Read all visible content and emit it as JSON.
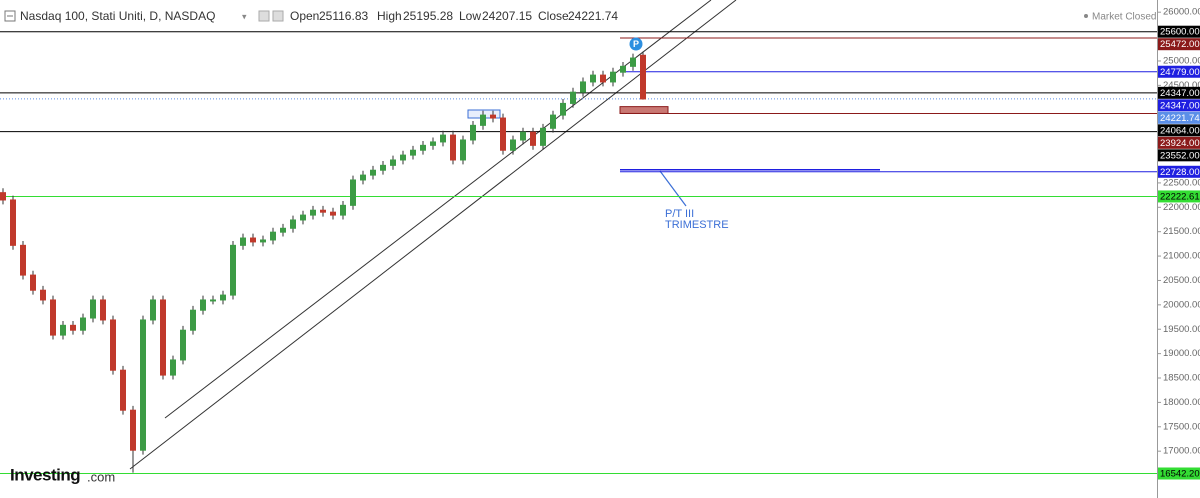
{
  "header": {
    "title": "Nasdaq 100, Stati Uniti, D, NASDAQ",
    "open_label": "Open",
    "open": 25116.83,
    "high_label": "High",
    "high": 25195.28,
    "low_label": "Low",
    "low": 24207.15,
    "close_label": "Close",
    "close": 24221.74,
    "status": "Market Closed",
    "logo": "Investing",
    "logo_suffix": ".com"
  },
  "chart_data": {
    "type": "candlestick",
    "up_color": "#3c9b45",
    "down_color": "#c0392b",
    "ylim": [
      16040,
      26250
    ],
    "yticks": [
      {
        "value": 26000,
        "label": "26000.00"
      },
      {
        "value": 25000,
        "label": "25000.00"
      },
      {
        "value": 24500,
        "label": "24500.00"
      },
      {
        "value": 22500,
        "label": "22500.00"
      },
      {
        "value": 22000,
        "label": "22000.00"
      },
      {
        "value": 21500,
        "label": "21500.00"
      },
      {
        "value": 21000,
        "label": "21000.00"
      },
      {
        "value": 20500,
        "label": "20500.00"
      },
      {
        "value": 20000,
        "label": "20000.00"
      },
      {
        "value": 19500,
        "label": "19500.00"
      },
      {
        "value": 19000,
        "label": "19000.00"
      },
      {
        "value": 18500,
        "label": "18500.00"
      },
      {
        "value": 18000,
        "label": "18000.00"
      },
      {
        "value": 17500,
        "label": "17500.00"
      },
      {
        "value": 17000,
        "label": "17000.00"
      }
    ],
    "open": [
      22300,
      22150,
      21220,
      20610,
      20300,
      20100,
      19380,
      19580,
      19480,
      19730,
      20100,
      19690,
      18660,
      17840,
      17020,
      19690,
      20100,
      18560,
      18870,
      19480,
      19890,
      20100,
      20100,
      20200,
      21220,
      21370,
      21290,
      21330,
      21490,
      21570,
      21740,
      21840,
      21940,
      21900,
      21840,
      22040,
      22560,
      22660,
      22760,
      22860,
      22970,
      23070,
      23170,
      23270,
      23340,
      23480,
      22970,
      23380,
      23680,
      23890,
      23830,
      23170,
      23380,
      23540,
      23270,
      23620,
      23890,
      24130,
      24360,
      24570,
      24710,
      24570,
      24770,
      24890,
      25116.83
    ],
    "high": [
      22390,
      22240,
      21310,
      20700,
      20390,
      20190,
      19670,
      19670,
      19820,
      20190,
      20190,
      19780,
      18750,
      17930,
      19780,
      20190,
      20190,
      18960,
      19570,
      19980,
      20190,
      20190,
      20290,
      21310,
      21460,
      21460,
      21420,
      21580,
      21660,
      21830,
      21930,
      22030,
      22030,
      21990,
      22130,
      22650,
      22750,
      22850,
      22950,
      23060,
      23160,
      23260,
      23360,
      23430,
      23570,
      23570,
      23470,
      23770,
      23980,
      23980,
      23920,
      23470,
      23630,
      23630,
      23710,
      23980,
      24220,
      24450,
      24660,
      24800,
      24800,
      24860,
      24980,
      25150,
      25195.28
    ],
    "low": [
      22060,
      21130,
      20520,
      20210,
      20010,
      19290,
      19290,
      19390,
      19390,
      19640,
      19600,
      18570,
      17750,
      16560,
      16930,
      19600,
      18470,
      18470,
      18780,
      19390,
      19800,
      20010,
      20010,
      20110,
      21130,
      21200,
      21200,
      21240,
      21400,
      21480,
      21650,
      21750,
      21810,
      21750,
      21750,
      21950,
      22470,
      22570,
      22670,
      22770,
      22880,
      22980,
      23080,
      23180,
      23250,
      22880,
      22880,
      23290,
      23590,
      23740,
      23080,
      23080,
      23290,
      23180,
      23180,
      23530,
      23800,
      24040,
      24270,
      24480,
      24480,
      24480,
      24680,
      24800,
      24207.15
    ],
    "close": [
      22150,
      21220,
      20610,
      20300,
      20100,
      19380,
      19580,
      19480,
      19730,
      20100,
      19690,
      18660,
      17840,
      17020,
      19690,
      20100,
      18560,
      18870,
      19480,
      19890,
      20100,
      20100,
      20200,
      21220,
      21370,
      21290,
      21330,
      21490,
      21570,
      21740,
      21840,
      21940,
      21900,
      21840,
      22040,
      22560,
      22660,
      22760,
      22860,
      22970,
      23070,
      23170,
      23270,
      23340,
      23480,
      22970,
      23380,
      23680,
      23890,
      23830,
      23170,
      23380,
      23540,
      23270,
      23620,
      23890,
      24130,
      24360,
      24570,
      24710,
      24570,
      24770,
      24890,
      25060,
      24221.74
    ],
    "levels": [
      {
        "value": 25600,
        "label": "25600.00",
        "color": "#000000",
        "text_color": "#ffffff",
        "line": "full"
      },
      {
        "value": 25472,
        "label": "25472.00",
        "color": "#8b1a1a",
        "text_color": "#ffffff",
        "line": "right"
      },
      {
        "value": 24779,
        "label": "24779.00",
        "color": "#1f1fe0",
        "text_color": "#ffffff",
        "line": "right"
      },
      {
        "value": 24347,
        "label": "24347.00",
        "color": "#000000",
        "text_color": "#ffffff",
        "line": "full"
      },
      {
        "value": 24347,
        "label": "24347.00",
        "color": "#1f1fe0",
        "text_color": "#ffffff",
        "line": "none"
      },
      {
        "value": 24221.74,
        "label": "24221.74",
        "color": "#5b8fe8",
        "text_color": "#ffffff",
        "line": "dotted"
      },
      {
        "value": 24064,
        "label": "24064.00",
        "color": "#000000",
        "text_color": "#ffffff",
        "line": "none"
      },
      {
        "value": 23924,
        "label": "23924.00",
        "color": "#8b1a1a",
        "text_color": "#ffffff",
        "line": "right"
      },
      {
        "value": 23552,
        "label": "23552.00",
        "color": "#000000",
        "text_color": "#ffffff",
        "line": "full"
      },
      {
        "value": 22728,
        "label": "22728.00",
        "color": "#1f1fe0",
        "text_color": "#ffffff",
        "line": "double"
      },
      {
        "value": 22222.61,
        "label": "22222.61",
        "color": "#33dd33",
        "text_color": "#000000",
        "line": "full"
      },
      {
        "value": 16542.2,
        "label": "16542.20",
        "color": "#33dd33",
        "text_color": "#000000",
        "line": "full"
      }
    ],
    "zones": [
      {
        "from": 24064,
        "to": 23924,
        "color": "#c0605a"
      }
    ],
    "annotations": [
      {
        "lines": [
          "P/T III",
          "TRIMESTRE"
        ],
        "color": "#3b6fd6"
      }
    ]
  }
}
